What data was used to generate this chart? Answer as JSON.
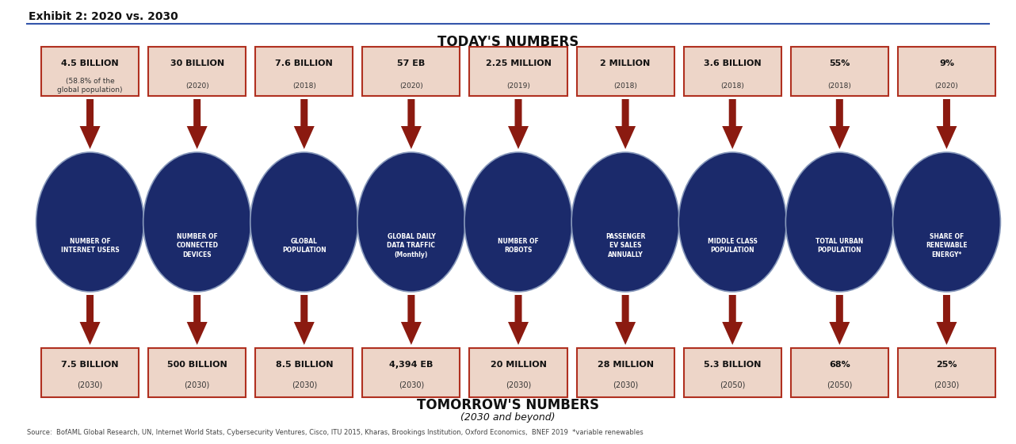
{
  "title": "Exhibit 2: 2020 vs. 2030",
  "today_label": "TODAY'S NUMBERS",
  "tomorrow_label": "TOMORROW'S NUMBERS",
  "tomorrow_sub": "(2030 and beyond)",
  "source": "Source:  BofAML Global Research, UN, Internet World Stats, Cybersecurity Ventures, Cisco, ITU 2015, Kharas, Brookings Institution, Oxford Economics,  BNEF 2019  *variable renewables",
  "bg_color": "#FFFFFF",
  "circle_color": "#1B2A6B",
  "box_bg": "#EDD5C8",
  "box_border": "#B03020",
  "arrow_color": "#8B1A10",
  "line_color": "#1B2A6B",
  "categories": [
    {
      "label": "NUMBER OF\nINTERNET USERS",
      "today_value": "4.5 BILLION",
      "today_sub": "(58.8% of the\nglobal population)",
      "tomorrow_value": "7.5 BILLION",
      "tomorrow_sub": "(2030)"
    },
    {
      "label": "NUMBER OF\nCONNECTED\nDEVICES",
      "today_value": "30 BILLION",
      "today_sub": "(2020)",
      "tomorrow_value": "500 BILLION",
      "tomorrow_sub": "(2030)"
    },
    {
      "label": "GLOBAL\nPOPULATION",
      "today_value": "7.6 BILLION",
      "today_sub": "(2018)",
      "tomorrow_value": "8.5 BILLION",
      "tomorrow_sub": "(2030)"
    },
    {
      "label": "GLOBAL DAILY\nDATA TRAFFIC\n(Monthly)",
      "today_value": "57 EB",
      "today_sub": "(2020)",
      "tomorrow_value": "4,394 EB",
      "tomorrow_sub": "(2030)"
    },
    {
      "label": "NUMBER OF\nROBOTS",
      "today_value": "2.25 MILLION",
      "today_sub": "(2019)",
      "tomorrow_value": "20 MILLION",
      "tomorrow_sub": "(2030)"
    },
    {
      "label": "PASSENGER\nEV SALES\nANNUALLY",
      "today_value": "2 MILLION",
      "today_sub": "(2018)",
      "tomorrow_value": "28 MILLION",
      "tomorrow_sub": "(2030)"
    },
    {
      "label": "MIDDLE CLASS\nPOPULATION",
      "today_value": "3.6 BILLION",
      "today_sub": "(2018)",
      "tomorrow_value": "5.3 BILLION",
      "tomorrow_sub": "(2050)"
    },
    {
      "label": "TOTAL URBAN\nPOPULATION",
      "today_value": "55%",
      "today_sub": "(2018)",
      "tomorrow_value": "68%",
      "tomorrow_sub": "(2050)"
    },
    {
      "label": "SHARE OF\nRENEWABLE\nENERGY*",
      "today_value": "9%",
      "today_sub": "(2020)",
      "tomorrow_value": "25%",
      "tomorrow_sub": "(2030)"
    }
  ]
}
